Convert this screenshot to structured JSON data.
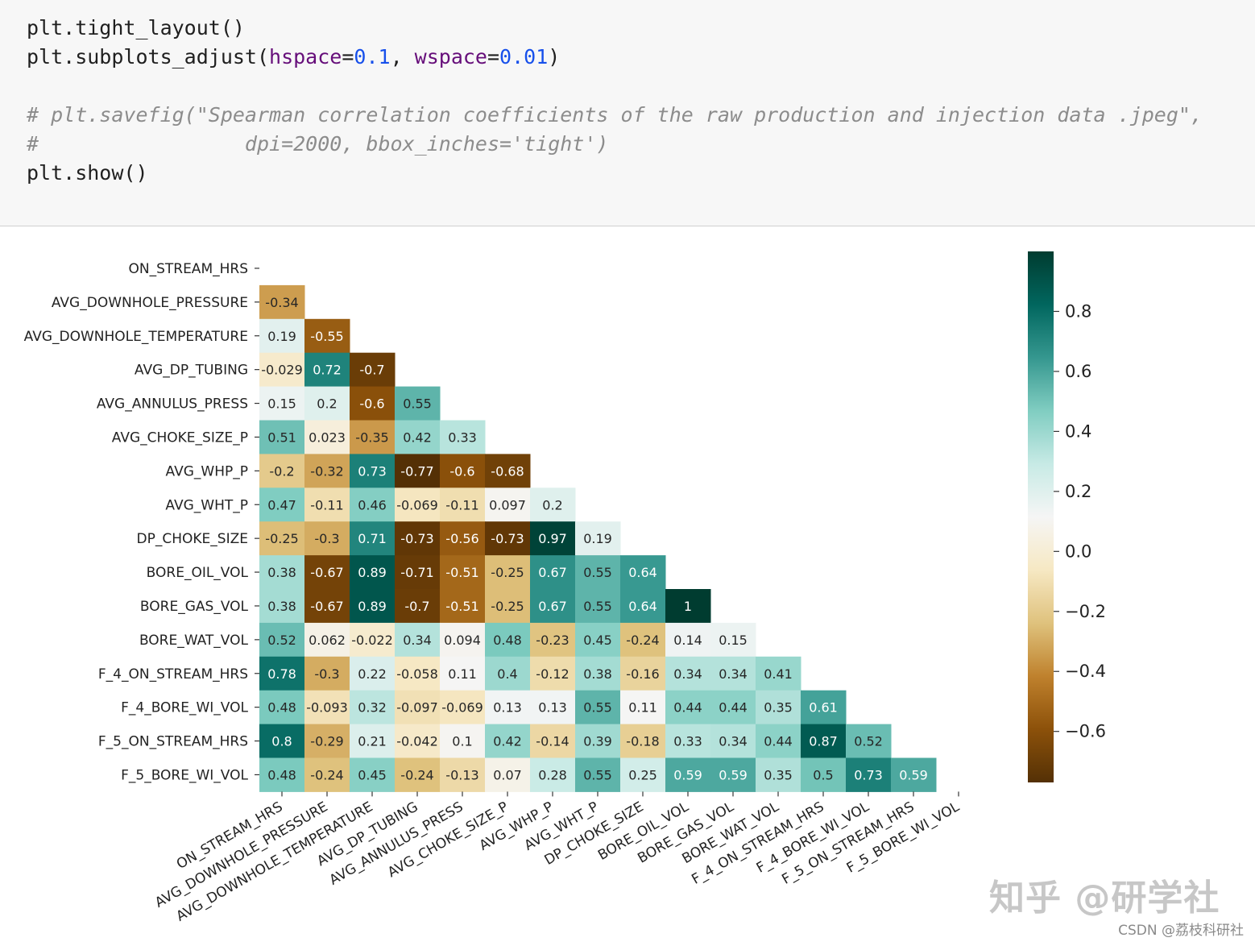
{
  "code": {
    "line1": "plt.tight_layout()",
    "line2_prefix": "plt.subplots_adjust(",
    "line2_arg1": "hspace",
    "line2_eq1": "=",
    "line2_val1": "0.1",
    "line2_sep": ", ",
    "line2_arg2": "wspace",
    "line2_eq2": "=",
    "line2_val2": "0.01",
    "line2_suffix": ")",
    "comment1": "# plt.savefig(\"Spearman correlation coefficients of the raw production and injection data .jpeg\",",
    "comment2": "#                 dpi=2000, bbox_inches='tight')",
    "line3": "plt.show()"
  },
  "chart_data": {
    "type": "heatmap",
    "title": "",
    "colormap": "BrBG",
    "variables": [
      "ON_STREAM_HRS",
      "AVG_DOWNHOLE_PRESSURE",
      "AVG_DOWNHOLE_TEMPERATURE",
      "AVG_DP_TUBING",
      "AVG_ANNULUS_PRESS",
      "AVG_CHOKE_SIZE_P",
      "AVG_WHP_P",
      "AVG_WHT_P",
      "DP_CHOKE_SIZE",
      "BORE_OIL_VOL",
      "BORE_GAS_VOL",
      "BORE_WAT_VOL",
      "F_4_ON_STREAM_HRS",
      "F_4_BORE_WI_VOL",
      "F_5_ON_STREAM_HRS",
      "F_5_BORE_WI_VOL"
    ],
    "lower_triangle_values": [
      [],
      [
        -0.34
      ],
      [
        0.19,
        -0.55
      ],
      [
        -0.029,
        0.72,
        -0.7
      ],
      [
        0.15,
        0.2,
        -0.6,
        0.55
      ],
      [
        0.51,
        0.023,
        -0.35,
        0.42,
        0.33
      ],
      [
        -0.2,
        -0.32,
        0.73,
        -0.77,
        -0.6,
        -0.68
      ],
      [
        0.47,
        -0.11,
        0.46,
        -0.069,
        -0.11,
        0.097,
        0.2
      ],
      [
        -0.25,
        -0.3,
        0.71,
        -0.73,
        -0.56,
        -0.73,
        0.97,
        0.19
      ],
      [
        0.38,
        -0.67,
        0.89,
        -0.71,
        -0.51,
        -0.25,
        0.67,
        0.55,
        0.64
      ],
      [
        0.38,
        -0.67,
        0.89,
        -0.7,
        -0.51,
        -0.25,
        0.67,
        0.55,
        0.64,
        1
      ],
      [
        0.52,
        0.062,
        -0.022,
        0.34,
        0.094,
        0.48,
        -0.23,
        0.45,
        -0.24,
        0.14,
        0.15
      ],
      [
        0.78,
        -0.3,
        0.22,
        -0.058,
        0.11,
        0.4,
        -0.12,
        0.38,
        -0.16,
        0.34,
        0.34,
        0.41
      ],
      [
        0.48,
        -0.093,
        0.32,
        -0.097,
        -0.069,
        0.13,
        0.13,
        0.55,
        0.11,
        0.44,
        0.44,
        0.35,
        0.61
      ],
      [
        0.8,
        -0.29,
        0.21,
        -0.042,
        0.1,
        0.42,
        -0.14,
        0.39,
        -0.18,
        0.33,
        0.34,
        0.44,
        0.87,
        0.52
      ],
      [
        0.48,
        -0.24,
        0.45,
        -0.24,
        -0.13,
        0.07,
        0.28,
        0.55,
        0.25,
        0.59,
        0.59,
        0.35,
        0.5,
        0.73,
        0.59
      ]
    ],
    "value_labels": [
      [],
      [
        "-0.34"
      ],
      [
        "0.19",
        "-0.55"
      ],
      [
        "-0.029",
        "0.72",
        "-0.7"
      ],
      [
        "0.15",
        "0.2",
        "-0.6",
        "0.55"
      ],
      [
        "0.51",
        "0.023",
        "-0.35",
        "0.42",
        "0.33"
      ],
      [
        "-0.2",
        "-0.32",
        "0.73",
        "-0.77",
        "-0.6",
        "-0.68"
      ],
      [
        "0.47",
        "-0.11",
        "0.46",
        "-0.069",
        "-0.11",
        "0.097",
        "0.2"
      ],
      [
        "-0.25",
        "-0.3",
        "0.71",
        "-0.73",
        "-0.56",
        "-0.73",
        "0.97",
        "0.19"
      ],
      [
        "0.38",
        "-0.67",
        "0.89",
        "-0.71",
        "-0.51",
        "-0.25",
        "0.67",
        "0.55",
        "0.64"
      ],
      [
        "0.38",
        "-0.67",
        "0.89",
        "-0.7",
        "-0.51",
        "-0.25",
        "0.67",
        "0.55",
        "0.64",
        "1"
      ],
      [
        "0.52",
        "0.062",
        "-0.022",
        "0.34",
        "0.094",
        "0.48",
        "-0.23",
        "0.45",
        "-0.24",
        "0.14",
        "0.15"
      ],
      [
        "0.78",
        "-0.3",
        "0.22",
        "-0.058",
        "0.11",
        "0.4",
        "-0.12",
        "0.38",
        "-0.16",
        "0.34",
        "0.34",
        "0.41"
      ],
      [
        "0.48",
        "-0.093",
        "0.32",
        "-0.097",
        "-0.069",
        "0.13",
        "0.13",
        "0.55",
        "0.11",
        "0.44",
        "0.44",
        "0.35",
        "0.61"
      ],
      [
        "0.8",
        "-0.29",
        "0.21",
        "-0.042",
        "0.1",
        "0.42",
        "-0.14",
        "0.39",
        "-0.18",
        "0.33",
        "0.34",
        "0.44",
        "0.87",
        "0.52"
      ],
      [
        "0.48",
        "-0.24",
        "0.45",
        "-0.24",
        "-0.13",
        "0.07",
        "0.28",
        "0.55",
        "0.25",
        "0.59",
        "0.59",
        "0.35",
        "0.5",
        "0.73",
        "0.59"
      ]
    ],
    "colorbar": {
      "range": [
        -0.77,
        1.0
      ],
      "ticks": [
        0.8,
        0.6,
        0.4,
        0.2,
        0.0,
        -0.2,
        -0.4,
        -0.6
      ],
      "tick_labels": [
        "0.8",
        "0.6",
        "0.4",
        "0.2",
        "0.0",
        "−0.2",
        "−0.4",
        "−0.6"
      ]
    },
    "mask": "upper-triangle-and-diagonal",
    "xlabel": "",
    "ylabel": ""
  },
  "watermark": "知乎 @研学社",
  "credit": "CSDN @荔枝科研社"
}
